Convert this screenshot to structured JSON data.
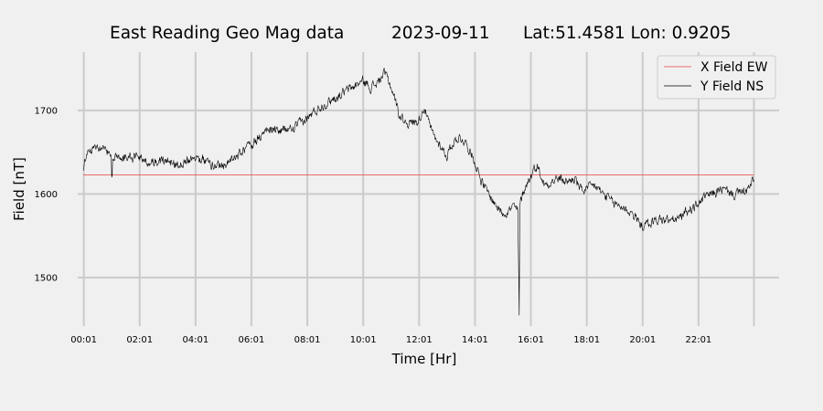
{
  "chart_data": {
    "type": "line",
    "title_parts": [
      "East Reading Geo Mag data",
      "2023-09-11",
      "Lat:51.4581  Lon: 0.9205"
    ],
    "xlabel": "Time  [Hr]",
    "ylabel": "Field  [nT]",
    "xlim": [
      -0.2,
      24.9
    ],
    "ylim": [
      1442,
      1772
    ],
    "x_ticks": [
      {
        "value": 0.0167,
        "label": "00:01"
      },
      {
        "value": 2.0167,
        "label": "02:01"
      },
      {
        "value": 4.0167,
        "label": "04:01"
      },
      {
        "value": 6.0167,
        "label": "06:01"
      },
      {
        "value": 8.0167,
        "label": "08:01"
      },
      {
        "value": 10.0167,
        "label": "10:01"
      },
      {
        "value": 12.0167,
        "label": "12:01"
      },
      {
        "value": 14.0167,
        "label": "14:01"
      },
      {
        "value": 16.0167,
        "label": "16:01"
      },
      {
        "value": 18.0167,
        "label": "18:01"
      },
      {
        "value": 20.0167,
        "label": "20:01"
      },
      {
        "value": 22.0167,
        "label": "22:01"
      }
    ],
    "x_gridlines": [
      0.0167,
      2.0167,
      4.0167,
      6.0167,
      8.0167,
      10.0167,
      12.0167,
      14.0167,
      16.0167,
      18.0167,
      20.0167,
      22.0167,
      24.0
    ],
    "y_ticks": [
      1500,
      1600,
      1700
    ],
    "grid": true,
    "legend_position": "top-right",
    "series": [
      {
        "name": "X Field EW",
        "color": "#e4413a",
        "x": [
          0.0,
          24.0
        ],
        "y": [
          1623,
          1623
        ]
      },
      {
        "name": "Y Field NS",
        "color": "#000000",
        "noise": 6,
        "x": [
          0.0,
          0.05,
          0.15,
          0.3,
          0.5,
          0.7,
          0.9,
          1.0,
          1.02,
          1.05,
          1.2,
          1.5,
          2.0,
          2.5,
          3.0,
          3.4,
          3.7,
          4.0,
          4.3,
          4.6,
          5.0,
          5.3,
          5.6,
          6.0,
          6.3,
          6.6,
          7.0,
          7.5,
          8.0,
          8.5,
          9.0,
          9.5,
          10.0,
          10.3,
          10.6,
          10.75,
          10.9,
          11.1,
          11.3,
          11.5,
          11.7,
          12.0,
          12.2,
          12.4,
          12.6,
          12.8,
          13.0,
          13.2,
          13.4,
          13.6,
          13.8,
          14.0,
          14.2,
          14.4,
          14.6,
          14.8,
          15.0,
          15.2,
          15.4,
          15.55,
          15.6,
          15.62,
          15.65,
          15.8,
          16.0,
          16.2,
          16.3,
          16.5,
          16.7,
          17.0,
          17.3,
          17.6,
          17.8,
          18.0,
          18.3,
          18.6,
          19.0,
          19.3,
          19.6,
          19.8,
          20.0,
          20.3,
          20.6,
          21.0,
          21.3,
          21.6,
          21.9,
          22.2,
          22.5,
          22.8,
          23.0,
          23.3,
          23.6,
          23.8,
          24.0
        ],
        "y": [
          1628,
          1645,
          1648,
          1652,
          1658,
          1656,
          1648,
          1640,
          1610,
          1638,
          1646,
          1646,
          1643,
          1638,
          1640,
          1635,
          1642,
          1645,
          1642,
          1635,
          1635,
          1640,
          1648,
          1660,
          1668,
          1676,
          1676,
          1678,
          1690,
          1705,
          1715,
          1725,
          1735,
          1728,
          1735,
          1745,
          1738,
          1720,
          1695,
          1688,
          1685,
          1688,
          1705,
          1680,
          1665,
          1658,
          1645,
          1660,
          1668,
          1665,
          1655,
          1640,
          1620,
          1605,
          1595,
          1585,
          1578,
          1580,
          1585,
          1580,
          1455,
          1585,
          1592,
          1608,
          1620,
          1635,
          1630,
          1610,
          1615,
          1618,
          1615,
          1618,
          1605,
          1605,
          1610,
          1600,
          1588,
          1585,
          1578,
          1570,
          1562,
          1565,
          1570,
          1568,
          1570,
          1580,
          1585,
          1595,
          1600,
          1605,
          1603,
          1600,
          1602,
          1605,
          1618
        ]
      }
    ]
  }
}
